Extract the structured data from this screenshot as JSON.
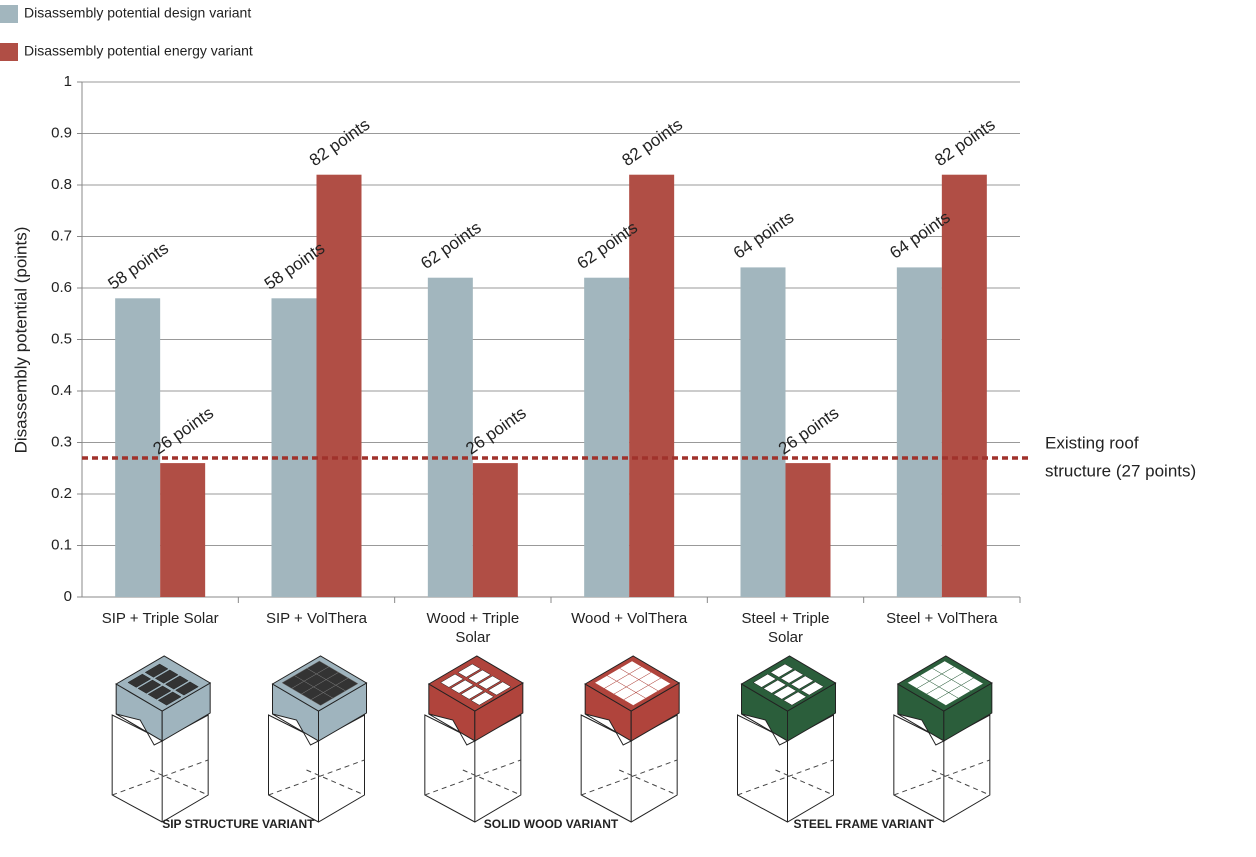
{
  "chart_data": {
    "type": "bar",
    "y_label": "Disassembly potential (points)",
    "categories": [
      [
        "SIP + Triple Solar"
      ],
      [
        "SIP + VolThera"
      ],
      [
        "Wood + Triple",
        "Solar"
      ],
      [
        "Wood + VolThera"
      ],
      [
        "Steel + Triple",
        "Solar"
      ],
      [
        "Steel + VolThera"
      ]
    ],
    "series": [
      {
        "name": "Disassembly potential design variant",
        "color": "#a2b6be",
        "values": [
          0.58,
          0.58,
          0.62,
          0.62,
          0.64,
          0.64
        ],
        "value_labels": [
          "58 points",
          "58 points",
          "62 points",
          "62 points",
          "64 points",
          "64 points"
        ]
      },
      {
        "name": "Disassembly potential energy variant",
        "color": "#b04e45",
        "values": [
          0.26,
          0.82,
          0.26,
          0.82,
          0.26,
          0.82
        ],
        "value_labels": [
          "26 points",
          "82 points",
          "26 points",
          "82 points",
          "26 points",
          "82 points"
        ]
      }
    ],
    "ylim": [
      0,
      1
    ],
    "yticks": [
      0,
      0.1,
      0.2,
      0.3,
      0.4,
      0.5,
      0.6,
      0.7,
      0.8,
      0.9,
      1
    ],
    "grid": true,
    "reference": {
      "value": 0.27,
      "color": "#a0322c",
      "label": [
        "Existing roof",
        "structure (27 points)"
      ]
    },
    "panel_labels": [
      "SIP STRUCTURE VARIANT",
      "SOLID WOOD VARIANT",
      "STEEL FRAME VARIANT"
    ]
  }
}
